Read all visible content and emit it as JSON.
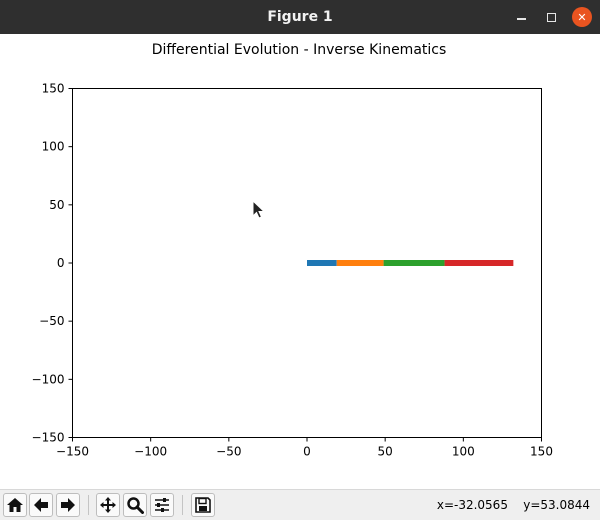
{
  "window": {
    "title": "Figure 1"
  },
  "chart_data": {
    "type": "line",
    "title": "Differential Evolution - Inverse Kinematics",
    "xlabel": "",
    "ylabel": "",
    "xlim": [
      -150,
      150
    ],
    "ylim": [
      -150,
      150
    ],
    "xticks": [
      -150,
      -100,
      -50,
      0,
      50,
      100,
      150
    ],
    "yticks": [
      -150,
      -100,
      -50,
      0,
      50,
      100,
      150
    ],
    "xtick_labels": [
      "−150",
      "−100",
      "−50",
      "0",
      "50",
      "100",
      "150"
    ],
    "ytick_labels": [
      "−150",
      "−100",
      "−50",
      "0",
      "50",
      "100",
      "150"
    ],
    "grid": false,
    "series": [
      {
        "color": "#1f77b4",
        "x": [
          0,
          19
        ],
        "y": [
          0,
          0
        ]
      },
      {
        "color": "#ff7f0e",
        "x": [
          19,
          49
        ],
        "y": [
          0,
          0
        ]
      },
      {
        "color": "#2ca02c",
        "x": [
          49,
          88
        ],
        "y": [
          0,
          0
        ]
      },
      {
        "color": "#d62728",
        "x": [
          88,
          132
        ],
        "y": [
          0,
          0
        ]
      }
    ]
  },
  "toolbar": {
    "buttons": [
      "home-icon",
      "back-icon",
      "forward-icon",
      "pan-icon",
      "zoom-icon",
      "configure-subplots-icon",
      "save-icon"
    ],
    "coords_x": "x=-32.0565",
    "coords_y": "y=53.0844"
  }
}
